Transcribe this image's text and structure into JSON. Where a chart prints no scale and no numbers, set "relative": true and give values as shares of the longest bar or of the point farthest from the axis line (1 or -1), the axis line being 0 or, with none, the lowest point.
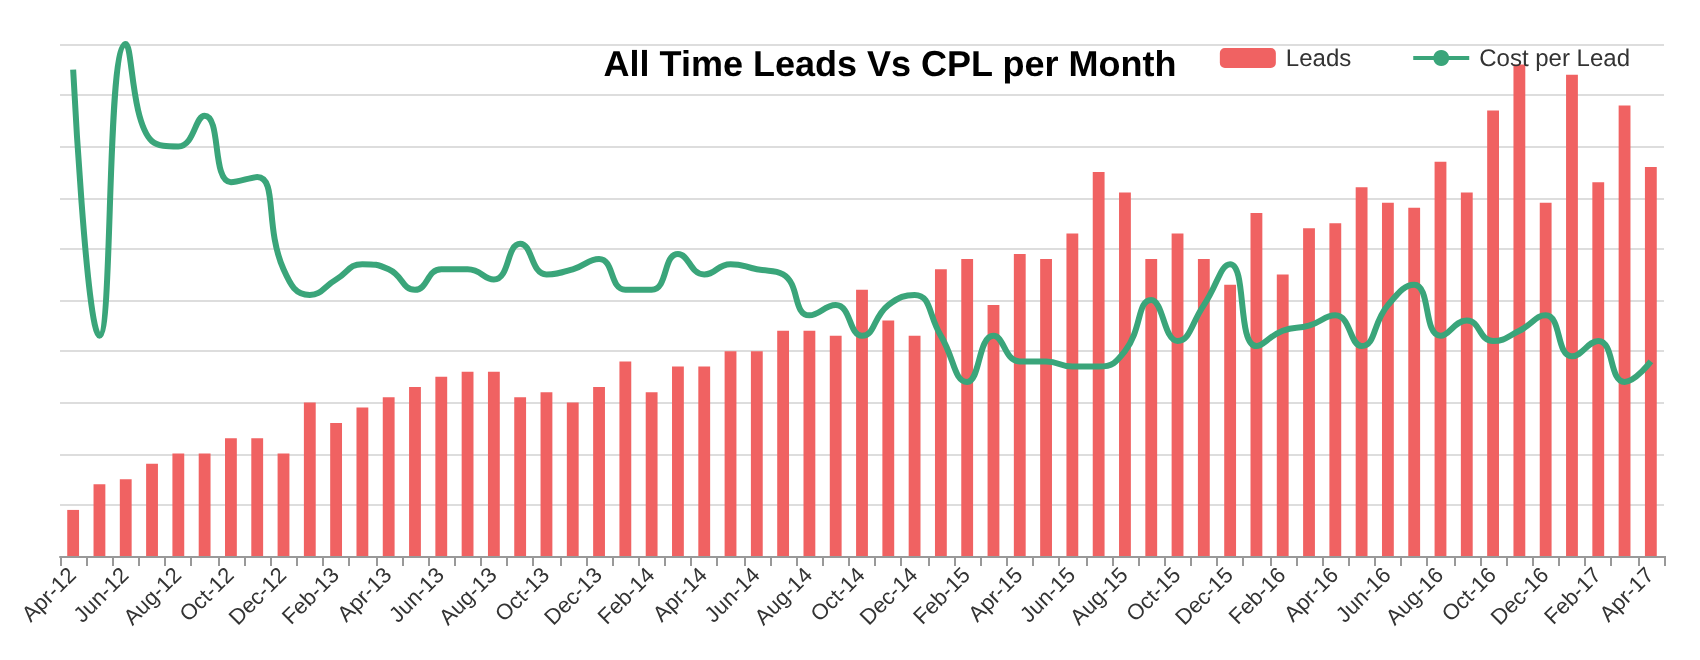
{
  "chart_data": {
    "type": "bar",
    "title": "All Time Leads Vs CPL per Month",
    "relative": true,
    "grid": "y",
    "legend": "top right",
    "categories": [
      "Apr-12",
      null,
      "Jun-12",
      null,
      "Aug-12",
      null,
      "Oct-12",
      null,
      "Dec-12",
      null,
      "Feb-13",
      null,
      "Apr-13",
      null,
      "Jun-13",
      null,
      "Aug-13",
      null,
      "Oct-13",
      null,
      "Dec-13",
      null,
      "Feb-14",
      null,
      "Apr-14",
      null,
      "Jun-14",
      null,
      "Aug-14",
      null,
      "Oct-14",
      null,
      "Dec-14",
      null,
      "Feb-15",
      null,
      "Apr-15",
      null,
      "Jun-15",
      null,
      "Aug-15",
      null,
      "Oct-15",
      null,
      "Dec-15",
      null,
      "Feb-16",
      null,
      "Apr-16",
      null,
      "Jun-16",
      null,
      "Aug-16",
      null,
      "Oct-16",
      null,
      "Dec-16",
      null,
      "Feb-17",
      null,
      "Apr-17"
    ],
    "series": [
      {
        "name": "Leads",
        "color": "#f06262",
        "values": [
          0.09,
          0.14,
          0.15,
          0.18,
          0.2,
          0.2,
          0.23,
          0.23,
          0.2,
          0.3,
          0.26,
          0.29,
          0.31,
          0.33,
          0.35,
          0.36,
          0.36,
          0.31,
          0.32,
          0.3,
          0.33,
          0.38,
          0.32,
          0.37,
          0.37,
          0.4,
          0.4,
          0.44,
          0.44,
          0.43,
          0.52,
          0.46,
          0.43,
          0.56,
          0.58,
          0.49,
          0.59,
          0.58,
          0.63,
          0.75,
          0.71,
          0.58,
          0.63,
          0.58,
          0.53,
          0.67,
          0.55,
          0.64,
          0.65,
          0.72,
          0.69,
          0.68,
          0.77,
          0.71,
          0.87,
          0.96,
          0.69,
          0.94,
          0.73,
          0.88,
          0.76
        ]
      },
      {
        "name": "Cost per Lead",
        "type": "line",
        "color": "#3aa57a",
        "values": [
          0.95,
          0.43,
          1,
          0.81,
          0.8,
          0.86,
          0.73,
          0.74,
          0.56,
          0.51,
          0.54,
          0.57,
          0.56,
          0.52,
          0.56,
          0.56,
          0.54,
          0.61,
          0.55,
          0.56,
          0.58,
          0.52,
          0.52,
          0.59,
          0.55,
          0.57,
          0.56,
          0.55,
          0.47,
          0.49,
          0.43,
          0.49,
          0.51,
          0.43,
          0.34,
          0.43,
          0.38,
          0.38,
          0.37,
          0.37,
          0.4,
          0.5,
          0.42,
          0.49,
          0.57,
          0.41,
          0.44,
          0.45,
          0.47,
          0.41,
          0.49,
          0.53,
          0.43,
          0.46,
          0.42,
          0.44,
          0.47,
          0.39,
          0.42,
          0.34,
          0.38
        ]
      }
    ]
  }
}
